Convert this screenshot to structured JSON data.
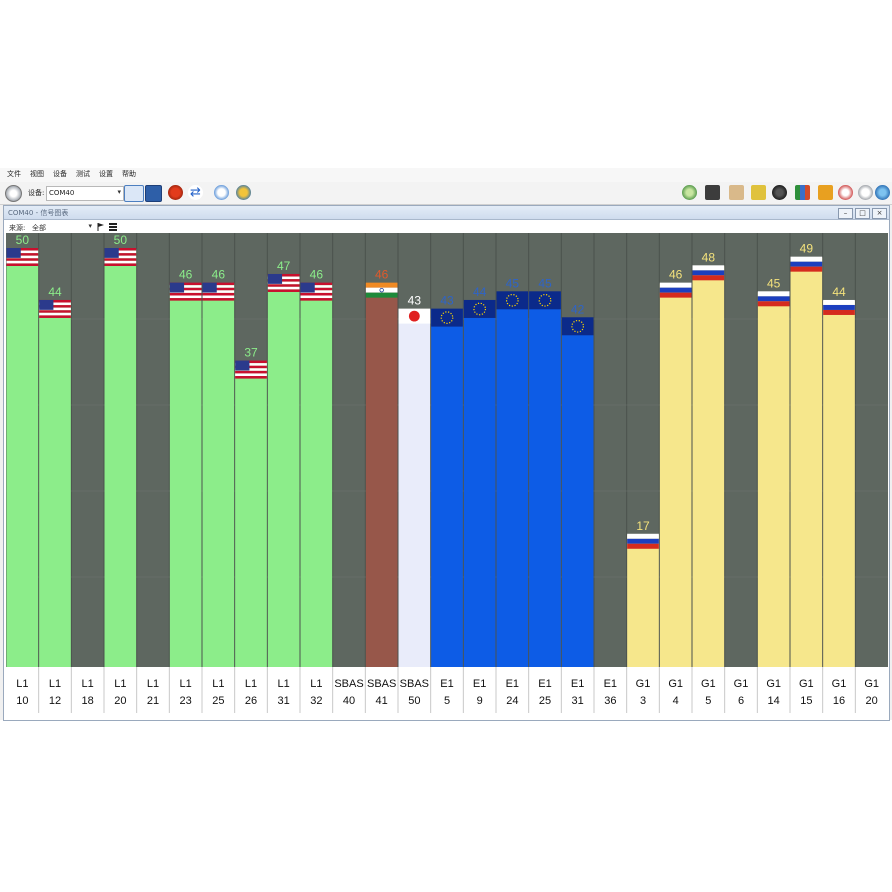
{
  "menu": {
    "items": [
      "文件",
      "视图",
      "设备",
      "测试",
      "设置",
      "帮助"
    ]
  },
  "toolbar": {
    "device_label": "设备:",
    "device_value": "COM40"
  },
  "window": {
    "title": "COM40 - 信号图表",
    "source_label": "来源:",
    "source_value": "全部"
  },
  "colors": {
    "plot_background": "#5e6760",
    "gps": "#8ced8a",
    "irnss": "#97574a",
    "qzss": "#e9ecfa",
    "galileo": "#0d5ce6",
    "glonass": "#f6e78c",
    "gps_label": "#8ced8a",
    "irnss_label": "#e05a2b",
    "qzss_label": "#ffffff",
    "galileo_label": "#2e64c8",
    "glonass_label": "#f4e27c"
  },
  "chart_data": {
    "type": "bar",
    "ylim": [
      0,
      60
    ],
    "categories": [
      "L1 10",
      "L1 12",
      "L1 18",
      "L1 20",
      "L1 21",
      "L1 23",
      "L1 25",
      "L1 26",
      "L1 31",
      "L1 32",
      "SBAS 40",
      "SBAS 41",
      "SBAS 50",
      "E1 5",
      "E1 9",
      "E1 24",
      "E1 25",
      "E1 31",
      "E1 36",
      "G1 3",
      "G1 4",
      "G1 5",
      "G1 6",
      "G1 14",
      "G1 15",
      "G1 16",
      "G1 20"
    ],
    "bars": [
      {
        "band": "L1",
        "prn": "10",
        "value": 50,
        "system": "gps",
        "flag": "us-flag"
      },
      {
        "band": "L1",
        "prn": "12",
        "value": 44,
        "system": "gps",
        "flag": "us-flag"
      },
      {
        "band": "L1",
        "prn": "18",
        "value": null,
        "system": "none",
        "flag": null
      },
      {
        "band": "L1",
        "prn": "20",
        "value": 50,
        "system": "gps",
        "flag": "us-flag"
      },
      {
        "band": "L1",
        "prn": "21",
        "value": null,
        "system": "none",
        "flag": null
      },
      {
        "band": "L1",
        "prn": "23",
        "value": 46,
        "system": "gps",
        "flag": "us-flag"
      },
      {
        "band": "L1",
        "prn": "25",
        "value": 46,
        "system": "gps",
        "flag": "us-flag"
      },
      {
        "band": "L1",
        "prn": "26",
        "value": 37,
        "system": "gps",
        "flag": "us-flag"
      },
      {
        "band": "L1",
        "prn": "31",
        "value": 47,
        "system": "gps",
        "flag": "us-flag"
      },
      {
        "band": "L1",
        "prn": "32",
        "value": 46,
        "system": "gps",
        "flag": "us-flag"
      },
      {
        "band": "SBAS",
        "prn": "40",
        "value": null,
        "system": "none",
        "flag": null
      },
      {
        "band": "SBAS",
        "prn": "41",
        "value": 46,
        "system": "irnss",
        "flag": "india-flag"
      },
      {
        "band": "SBAS",
        "prn": "50",
        "value": 43,
        "system": "qzss",
        "flag": "japan-flag"
      },
      {
        "band": "E1",
        "prn": "5",
        "value": 43,
        "system": "galileo",
        "flag": "eu-flag"
      },
      {
        "band": "E1",
        "prn": "9",
        "value": 44,
        "system": "galileo",
        "flag": "eu-flag"
      },
      {
        "band": "E1",
        "prn": "24",
        "value": 45,
        "system": "galileo",
        "flag": "eu-flag"
      },
      {
        "band": "E1",
        "prn": "25",
        "value": 45,
        "system": "galileo",
        "flag": "eu-flag"
      },
      {
        "band": "E1",
        "prn": "31",
        "value": 42,
        "system": "galileo",
        "flag": "eu-flag"
      },
      {
        "band": "E1",
        "prn": "36",
        "value": null,
        "system": "none",
        "flag": null
      },
      {
        "band": "G1",
        "prn": "3",
        "value": 17,
        "system": "glonass",
        "flag": "russia-flag"
      },
      {
        "band": "G1",
        "prn": "4",
        "value": 46,
        "system": "glonass",
        "flag": "russia-flag"
      },
      {
        "band": "G1",
        "prn": "5",
        "value": 48,
        "system": "glonass",
        "flag": "russia-flag"
      },
      {
        "band": "G1",
        "prn": "6",
        "value": null,
        "system": "none",
        "flag": null
      },
      {
        "band": "G1",
        "prn": "14",
        "value": 45,
        "system": "glonass",
        "flag": "russia-flag"
      },
      {
        "band": "G1",
        "prn": "15",
        "value": 49,
        "system": "glonass",
        "flag": "russia-flag"
      },
      {
        "band": "G1",
        "prn": "16",
        "value": 44,
        "system": "glonass",
        "flag": "russia-flag"
      },
      {
        "band": "G1",
        "prn": "20",
        "value": null,
        "system": "none",
        "flag": null
      }
    ]
  }
}
